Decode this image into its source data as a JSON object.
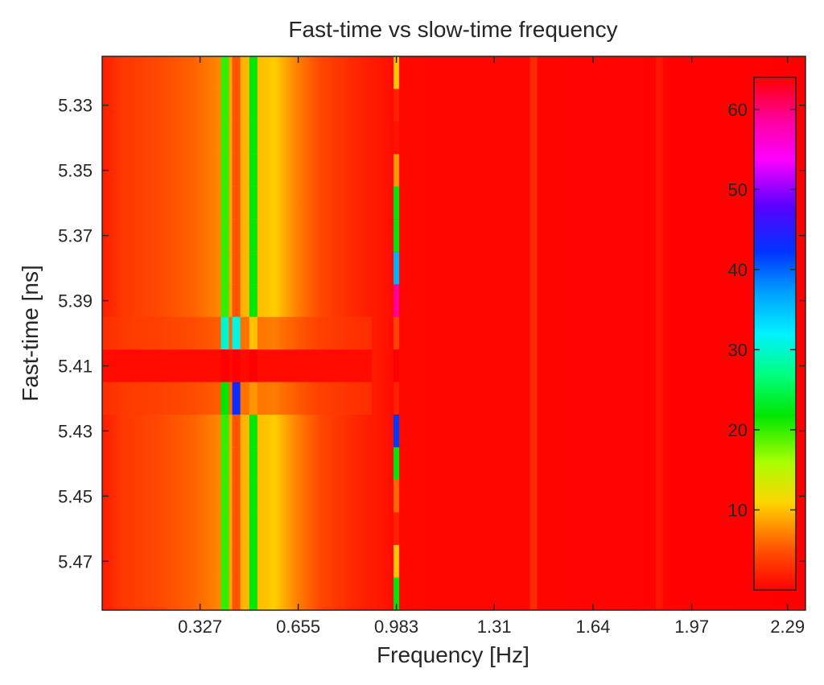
{
  "chart_data": {
    "type": "heatmap",
    "title": "Fast-time vs slow-time frequency",
    "xlabel": "Frequency [Hz]",
    "ylabel": "Fast-time [ns]",
    "x_ticks": [
      "0.327",
      "0.655",
      "0.983",
      "1.31",
      "1.64",
      "1.97",
      "2.29"
    ],
    "x_tick_values": [
      0.327,
      0.655,
      0.983,
      1.31,
      1.64,
      1.97,
      2.29
    ],
    "y_ticks": [
      "5.33",
      "5.35",
      "5.37",
      "5.39",
      "5.41",
      "5.43",
      "5.45",
      "5.47"
    ],
    "y_tick_values": [
      5.33,
      5.35,
      5.37,
      5.39,
      5.41,
      5.43,
      5.45,
      5.47
    ],
    "xlim": [
      0.0,
      2.35
    ],
    "ylim": [
      5.315,
      5.485
    ],
    "y_reversed": true,
    "colormap": "hsv",
    "colorbar": {
      "ticks": [
        "10",
        "20",
        "30",
        "40",
        "50",
        "60"
      ],
      "tick_values": [
        10,
        20,
        30,
        40,
        50,
        60
      ],
      "range": [
        0,
        64
      ],
      "placement": "inside-right"
    },
    "y_bins": [
      5.32,
      5.33,
      5.34,
      5.35,
      5.36,
      5.37,
      5.38,
      5.39,
      5.4,
      5.41,
      5.42,
      5.43,
      5.44,
      5.45,
      5.46,
      5.47,
      5.48
    ],
    "strong_lines": [
      {
        "frequency": 0.41,
        "values": [
          20,
          20,
          20,
          20,
          20,
          20,
          20,
          20,
          30,
          0,
          22,
          20,
          20,
          20,
          20,
          20,
          20
        ]
      },
      {
        "frequency": 0.448,
        "values": [
          5,
          5,
          5,
          5,
          5,
          5,
          5,
          5,
          31,
          0,
          43,
          5,
          5,
          5,
          5,
          5,
          5
        ]
      },
      {
        "frequency": 0.505,
        "values": [
          22,
          22,
          22,
          22,
          22,
          22,
          22,
          22,
          10,
          0,
          8,
          22,
          22,
          22,
          22,
          22,
          22
        ]
      },
      {
        "frequency": 0.983,
        "values": [
          10,
          2,
          1,
          8,
          22,
          22,
          36,
          59,
          4,
          0,
          2,
          42,
          22,
          6,
          2,
          10,
          22
        ]
      }
    ],
    "weak_lines": [
      {
        "frequency": 1.44,
        "value": 4
      },
      {
        "frequency": 1.86,
        "value": 2
      }
    ]
  }
}
